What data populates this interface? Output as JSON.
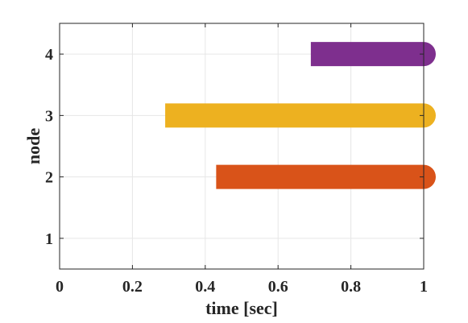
{
  "chart_data": {
    "type": "bar",
    "orientation": "horizontal",
    "title": "",
    "xlabel": "time [sec]",
    "ylabel": "node",
    "xlim": [
      0,
      1
    ],
    "ylim": [
      0.5,
      4.5
    ],
    "xticks": [
      0,
      0.2,
      0.4,
      0.6,
      0.8,
      1
    ],
    "xtick_labels": [
      "0",
      "0.2",
      "0.4",
      "0.6",
      "0.8",
      "1"
    ],
    "yticks": [
      1,
      2,
      3,
      4
    ],
    "ytick_labels": [
      "1",
      "2",
      "3",
      "4"
    ],
    "grid": true,
    "bar_end_cap": "rounded-right",
    "bars": [
      {
        "node": 2,
        "start": 0.43,
        "end": 1.0,
        "color": "#D95319"
      },
      {
        "node": 3,
        "start": 0.29,
        "end": 1.0,
        "color": "#EDB120"
      },
      {
        "node": 4,
        "start": 0.69,
        "end": 1.0,
        "color": "#7E2F8E"
      }
    ]
  }
}
